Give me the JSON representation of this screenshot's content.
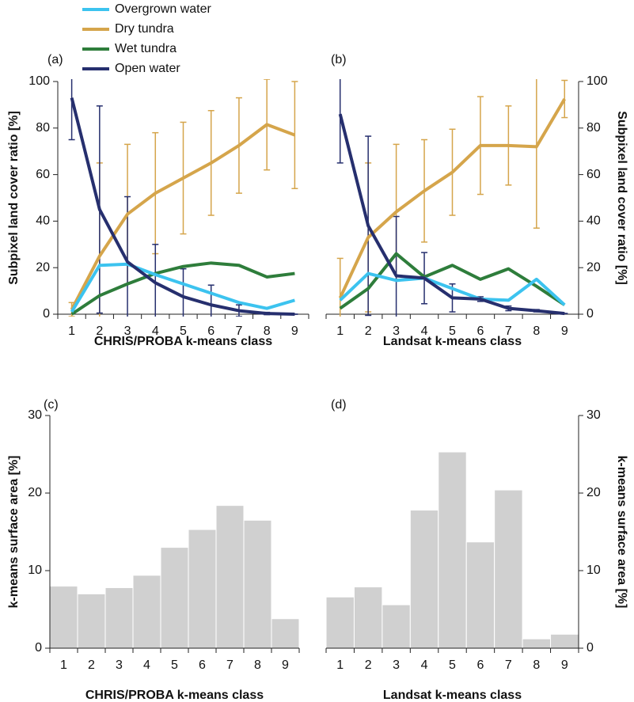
{
  "chart_data": [
    {
      "type": "line",
      "panel_label": "(a)",
      "xlabel": "CHRIS/PROBA k-means class",
      "ylabel": "Subpixel land cover ratio [%]",
      "categories": [
        "1",
        "2",
        "3",
        "4",
        "5",
        "6",
        "7",
        "8",
        "9"
      ],
      "ylim": [
        0,
        100
      ],
      "yticks": [
        0,
        20,
        40,
        60,
        80,
        100
      ],
      "yaxis_side": "left",
      "legend": "top",
      "series": [
        {
          "name": "Overgrown water",
          "color": "#3cc3ef",
          "values": [
            1,
            21,
            21.5,
            17,
            13,
            9,
            5,
            2.5,
            6
          ]
        },
        {
          "name": "Dry tundra",
          "color": "#d5a54b",
          "values": [
            2,
            25,
            43,
            52,
            58.5,
            65,
            72.5,
            81.5,
            77
          ],
          "errors": [
            3,
            40,
            30,
            26,
            24,
            22.5,
            20.5,
            19.5,
            23
          ]
        },
        {
          "name": "Wet tundra",
          "color": "#2e7d3b",
          "values": [
            0,
            8,
            13,
            17.5,
            20.5,
            22,
            21,
            16,
            17.5
          ]
        },
        {
          "name": "Open water",
          "color": "#262f6e",
          "values": [
            93,
            45,
            22.5,
            13.5,
            7.5,
            4,
            1.5,
            0.3,
            0
          ],
          "errors": [
            18,
            44.5,
            28,
            16.5,
            12,
            8.5,
            2.5,
            0.5,
            0
          ]
        }
      ]
    },
    {
      "type": "line",
      "panel_label": "(b)",
      "xlabel": "Landsat k-means class",
      "ylabel": "Subpixel land cover ratio [%]",
      "categories": [
        "1",
        "2",
        "3",
        "4",
        "5",
        "6",
        "7",
        "8",
        "9"
      ],
      "ylim": [
        0,
        100
      ],
      "yticks": [
        0,
        20,
        40,
        60,
        80,
        100
      ],
      "yaxis_side": "right",
      "series": [
        {
          "color": "#3cc3ef",
          "values": [
            6,
            17.5,
            14.5,
            15.5,
            11,
            6.5,
            6,
            15,
            4
          ]
        },
        {
          "color": "#d5a54b",
          "values": [
            7,
            33,
            44,
            53,
            61,
            72.5,
            72.5,
            72,
            92.5
          ],
          "errors": [
            17,
            32,
            29,
            22,
            18.5,
            21,
            17,
            35,
            8
          ]
        },
        {
          "color": "#2e7d3b",
          "values": [
            2.5,
            11,
            26,
            16,
            21,
            15,
            19.5,
            12,
            4
          ]
        },
        {
          "color": "#262f6e",
          "values": [
            86,
            38,
            16.5,
            15.5,
            7,
            6.5,
            2.5,
            1.5,
            0.3
          ],
          "errors": [
            21,
            38.5,
            25.5,
            11,
            6,
            1,
            1,
            0.5,
            0
          ]
        }
      ]
    },
    {
      "type": "histogram",
      "panel_label": "(c)",
      "xlabel": "CHRIS/PROBA k-means class",
      "ylabel": "k-means surface area [%]",
      "categories": [
        "1",
        "2",
        "3",
        "4",
        "5",
        "6",
        "7",
        "8",
        "9"
      ],
      "ylim": [
        0,
        30
      ],
      "yticks": [
        0,
        10,
        20,
        30
      ],
      "yaxis_side": "left",
      "color": "#d0d0d0",
      "values": [
        8,
        7,
        7.8,
        9.4,
        13,
        15.3,
        18.4,
        16.5,
        3.8
      ]
    },
    {
      "type": "histogram",
      "panel_label": "(d)",
      "xlabel": "Landsat k-means class",
      "ylabel": "k-means surface area [%]",
      "categories": [
        "1",
        "2",
        "3",
        "4",
        "5",
        "6",
        "7",
        "8",
        "9"
      ],
      "ylim": [
        0,
        30
      ],
      "yticks": [
        0,
        10,
        20,
        30
      ],
      "yaxis_side": "right",
      "color": "#d0d0d0",
      "values": [
        6.6,
        7.9,
        5.6,
        17.8,
        25.3,
        13.7,
        20.4,
        1.2,
        1.8
      ]
    }
  ]
}
